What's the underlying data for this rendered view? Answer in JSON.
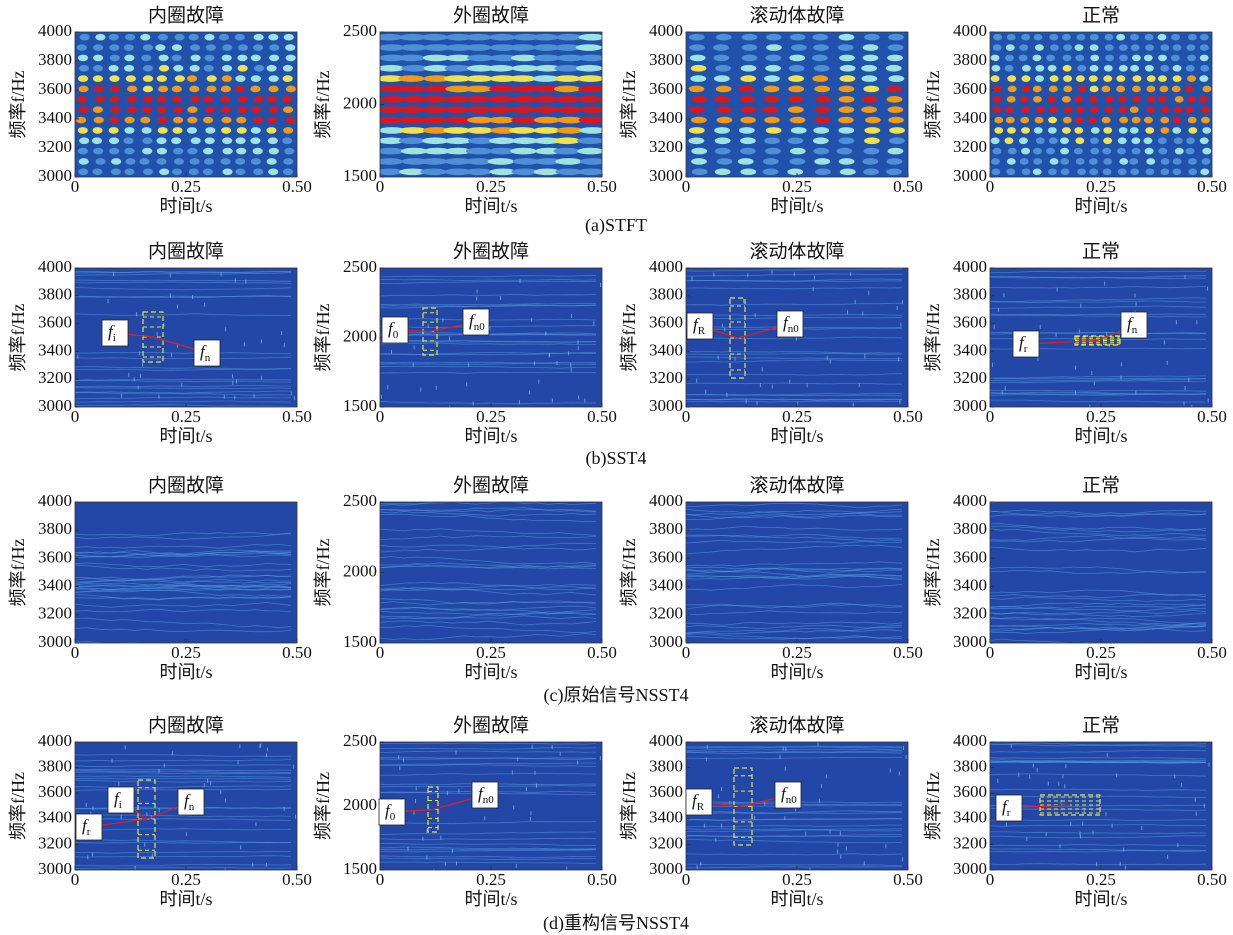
{
  "figure": {
    "rows": [
      {
        "caption": "(a)STFT",
        "panels": [
          {
            "title": "内圈故障",
            "xlabel": "时间t/s",
            "ylabel": "频率f/Hz",
            "xlim": [
              0,
              0.5
            ],
            "xticks": [
              0,
              0.25,
              {
                "value": 0.5,
                "label": "0.50"
              }
            ],
            "ylim": [
              3000,
              4000
            ],
            "yticks": [
              3000,
              3200,
              3400,
              3600,
              3800,
              4000
            ],
            "annotations": []
          },
          {
            "title": "外圈故障",
            "xlabel": "时间t/s",
            "ylabel": "频率f/Hz",
            "xlim": [
              0,
              0.5
            ],
            "xticks": [
              0,
              0.25,
              {
                "value": 0.5,
                "label": "0.50"
              }
            ],
            "ylim": [
              1500,
              2500
            ],
            "yticks": [
              1500,
              2000,
              2500
            ],
            "annotations": []
          },
          {
            "title": "滚动体故障",
            "xlabel": "时间t/s",
            "ylabel": "频率f/Hz",
            "xlim": [
              0,
              0.5
            ],
            "xticks": [
              0,
              0.25,
              {
                "value": 0.5,
                "label": "0.50"
              }
            ],
            "ylim": [
              3000,
              4000
            ],
            "yticks": [
              3000,
              3200,
              3400,
              3600,
              3800,
              4000
            ],
            "annotations": []
          },
          {
            "title": "正常",
            "xlabel": "时间t/s",
            "ylabel": "频率f/Hz",
            "xlim": [
              0,
              0.5
            ],
            "xticks": [
              0,
              0.25,
              {
                "value": 0.5,
                "label": "0.50"
              }
            ],
            "ylim": [
              3000,
              4000
            ],
            "yticks": [
              3000,
              3200,
              3400,
              3600,
              3800,
              4000
            ],
            "annotations": []
          }
        ]
      },
      {
        "caption": "(b)SST4",
        "panels": [
          {
            "title": "内圈故障",
            "xlabel": "时间t/s",
            "ylabel": "频率f/Hz",
            "xlim": [
              0,
              0.5
            ],
            "xticks": [
              0,
              0.25,
              {
                "value": 0.5,
                "label": "0.50"
              }
            ],
            "ylim": [
              3000,
              4000
            ],
            "yticks": [
              3000,
              3200,
              3400,
              3600,
              3800,
              4000
            ],
            "annotations": [
              {
                "base": "f",
                "sub": "i"
              },
              {
                "base": "f",
                "sub": "n"
              }
            ]
          },
          {
            "title": "外圈故障",
            "xlabel": "时间t/s",
            "ylabel": "频率f/Hz",
            "xlim": [
              0,
              0.5
            ],
            "xticks": [
              0,
              0.25,
              {
                "value": 0.5,
                "label": "0.50"
              }
            ],
            "ylim": [
              1500,
              2500
            ],
            "yticks": [
              1500,
              2000,
              2500
            ],
            "annotations": [
              {
                "base": "f",
                "sub": "0"
              },
              {
                "base": "f",
                "sub": "n0"
              }
            ]
          },
          {
            "title": "滚动体故障",
            "xlabel": "时间t/s",
            "ylabel": "频率f/Hz",
            "xlim": [
              0,
              0.5
            ],
            "xticks": [
              0,
              0.25,
              {
                "value": 0.5,
                "label": "0.50"
              }
            ],
            "ylim": [
              3000,
              4000
            ],
            "yticks": [
              3000,
              3200,
              3400,
              3600,
              3800,
              4000
            ],
            "annotations": [
              {
                "base": "f",
                "sub": "R"
              },
              {
                "base": "f",
                "sub": "n0"
              }
            ]
          },
          {
            "title": "正常",
            "xlabel": "时间t/s",
            "ylabel": "频率f/Hz",
            "xlim": [
              0,
              0.5
            ],
            "xticks": [
              0,
              0.25,
              {
                "value": 0.5,
                "label": "0.50"
              }
            ],
            "ylim": [
              3000,
              4000
            ],
            "yticks": [
              3000,
              3200,
              3400,
              3600,
              3800,
              4000
            ],
            "annotations": [
              {
                "base": "f",
                "sub": "r"
              },
              {
                "base": "f",
                "sub": "n"
              }
            ]
          }
        ]
      },
      {
        "caption": "(c)原始信号NSST4",
        "panels": [
          {
            "title": "内圈故障",
            "xlabel": "时间t/s",
            "ylabel": "频率f/Hz",
            "xlim": [
              0,
              0.5
            ],
            "xticks": [
              0,
              0.25,
              {
                "value": 0.5,
                "label": "0.50"
              }
            ],
            "ylim": [
              3000,
              4000
            ],
            "yticks": [
              3000,
              3200,
              3400,
              3600,
              3800,
              4000
            ],
            "annotations": []
          },
          {
            "title": "外圈故障",
            "xlabel": "时间t/s",
            "ylabel": "频率f/Hz",
            "xlim": [
              0,
              0.5
            ],
            "xticks": [
              0,
              0.25,
              {
                "value": 0.5,
                "label": "0.50"
              }
            ],
            "ylim": [
              1500,
              2500
            ],
            "yticks": [
              1500,
              2000,
              2500
            ],
            "annotations": []
          },
          {
            "title": "滚动体故障",
            "xlabel": "时间t/s",
            "ylabel": "频率f/Hz",
            "xlim": [
              0,
              0.5
            ],
            "xticks": [
              0,
              0.25,
              {
                "value": 0.5,
                "label": "0.50"
              }
            ],
            "ylim": [
              3000,
              4000
            ],
            "yticks": [
              3000,
              3200,
              3400,
              3600,
              3800,
              4000
            ],
            "annotations": []
          },
          {
            "title": "正常",
            "xlabel": "时间t/s",
            "ylabel": "频率f/Hz",
            "xlim": [
              0,
              0.5
            ],
            "xticks": [
              0,
              0.25,
              {
                "value": 0.5,
                "label": "0.50"
              }
            ],
            "ylim": [
              3000,
              4000
            ],
            "yticks": [
              3000,
              3200,
              3400,
              3600,
              3800,
              4000
            ],
            "annotations": []
          }
        ]
      },
      {
        "caption": "(d)重构信号NSST4",
        "panels": [
          {
            "title": "内圈故障",
            "xlabel": "时间t/s",
            "ylabel": "频率f/Hz",
            "xlim": [
              0,
              0.5
            ],
            "xticks": [
              0,
              0.25,
              {
                "value": 0.5,
                "label": "0.50"
              }
            ],
            "ylim": [
              3000,
              4000
            ],
            "yticks": [
              3000,
              3200,
              3400,
              3600,
              3800,
              4000
            ],
            "annotations": [
              {
                "base": "f",
                "sub": "i"
              },
              {
                "base": "f",
                "sub": "n"
              },
              {
                "base": "f",
                "sub": "r"
              }
            ]
          },
          {
            "title": "外圈故障",
            "xlabel": "时间t/s",
            "ylabel": "频率f/Hz",
            "xlim": [
              0,
              0.5
            ],
            "xticks": [
              0,
              0.25,
              {
                "value": 0.5,
                "label": "0.50"
              }
            ],
            "ylim": [
              1500,
              2500
            ],
            "yticks": [
              1500,
              2000,
              2500
            ],
            "annotations": [
              {
                "base": "f",
                "sub": "0"
              },
              {
                "base": "f",
                "sub": "n0"
              }
            ]
          },
          {
            "title": "滚动体故障",
            "xlabel": "时间t/s",
            "ylabel": "频率f/Hz",
            "xlim": [
              0,
              0.5
            ],
            "xticks": [
              0,
              0.25,
              {
                "value": 0.5,
                "label": "0.50"
              }
            ],
            "ylim": [
              3000,
              4000
            ],
            "yticks": [
              3000,
              3200,
              3400,
              3600,
              3800,
              4000
            ],
            "annotations": [
              {
                "base": "f",
                "sub": "R"
              },
              {
                "base": "f",
                "sub": "n0"
              }
            ]
          },
          {
            "title": "正常",
            "xlabel": "时间t/s",
            "ylabel": "频率f/Hz",
            "xlim": [
              0,
              0.5
            ],
            "xticks": [
              0,
              0.25,
              {
                "value": 0.5,
                "label": "0.50"
              }
            ],
            "ylim": [
              3000,
              4000
            ],
            "yticks": [
              3000,
              3200,
              3400,
              3600,
              3800,
              4000
            ],
            "annotations": [
              {
                "base": "f",
                "sub": "r"
              }
            ]
          }
        ]
      }
    ]
  }
}
